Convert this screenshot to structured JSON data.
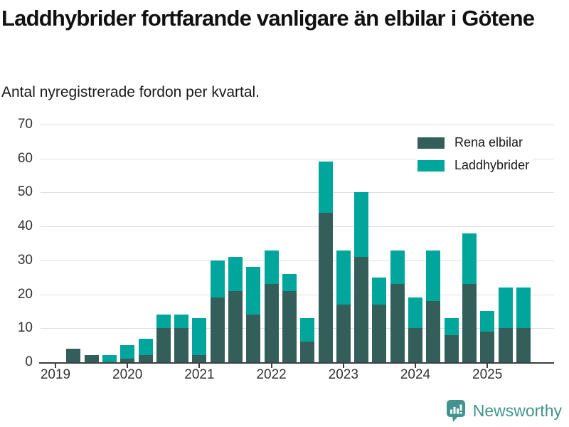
{
  "header": {
    "title": "Laddhybrider fortfarande vanligare än elbilar i Götene",
    "subtitle": "Antal nyregistrerade fordon per kvartal."
  },
  "footer": {
    "brand": "Newsworthy",
    "brand_color": "#43948f",
    "logo_icon": "bar-chart-speech-bubble-icon"
  },
  "colors": {
    "axis": "#3f3f3f",
    "gridline": "#e0e0e0",
    "tick_label": "#333333"
  },
  "chart_data": {
    "type": "bar",
    "stacked": true,
    "title": "Laddhybrider fortfarande vanligare än elbilar i Götene",
    "subtitle": "Antal nyregistrerade fordon per kvartal.",
    "xlabel": "",
    "ylabel": "",
    "ylim": [
      0,
      70
    ],
    "yticks": [
      0,
      10,
      20,
      30,
      40,
      50,
      60,
      70
    ],
    "grid": "horizontal",
    "legend_position": "top-right",
    "categories": [
      "2019 Q1",
      "2019 Q2",
      "2019 Q3",
      "2019 Q4",
      "2020 Q1",
      "2020 Q2",
      "2020 Q3",
      "2020 Q4",
      "2021 Q1",
      "2021 Q2",
      "2021 Q3",
      "2021 Q4",
      "2022 Q1",
      "2022 Q2",
      "2022 Q3",
      "2022 Q4",
      "2023 Q1",
      "2023 Q2",
      "2023 Q3",
      "2023 Q4",
      "2024 Q1",
      "2024 Q2",
      "2024 Q3",
      "2024 Q4",
      "2025 Q1",
      "2025 Q2",
      "2025 Q3"
    ],
    "series": [
      {
        "name": "Rena elbilar",
        "color": "#345e59",
        "values": [
          0,
          4,
          2,
          0,
          1,
          2,
          10,
          10,
          2,
          19,
          21,
          14,
          23,
          21,
          6,
          44,
          17,
          31,
          17,
          23,
          10,
          18,
          8,
          23,
          9,
          10,
          10
        ]
      },
      {
        "name": "Laddhybrider",
        "color": "#00a69c",
        "values": [
          0,
          0,
          0,
          2,
          4,
          5,
          4,
          4,
          11,
          11,
          10,
          14,
          10,
          5,
          7,
          15,
          16,
          19,
          8,
          10,
          9,
          15,
          5,
          15,
          6,
          12,
          12
        ]
      }
    ],
    "totals": [
      0,
      4,
      2,
      2,
      5,
      7,
      14,
      14,
      13,
      30,
      31,
      28,
      33,
      26,
      13,
      59,
      33,
      50,
      25,
      33,
      19,
      33,
      13,
      38,
      15,
      22,
      22
    ],
    "x_year_labels": [
      "2019",
      "2020",
      "2021",
      "2022",
      "2023",
      "2024",
      "2025"
    ],
    "year_tick_indices": [
      0,
      4,
      8,
      12,
      16,
      20,
      24
    ]
  }
}
